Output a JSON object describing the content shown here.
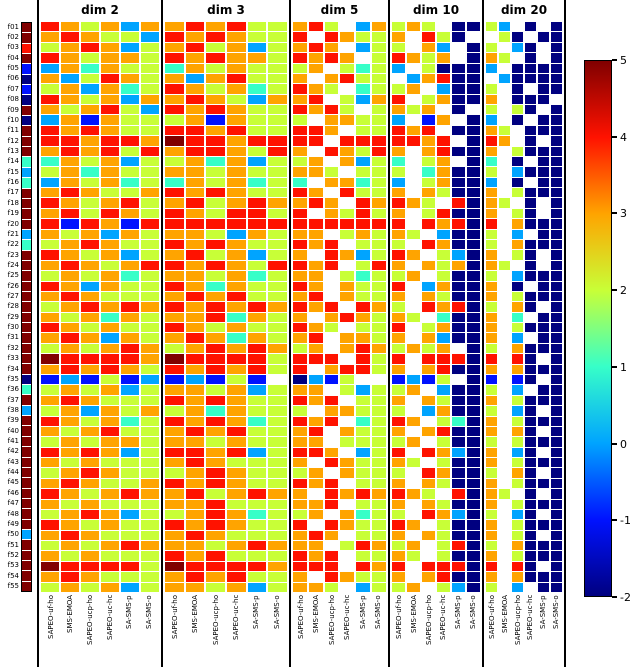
{
  "chart_data": {
    "type": "heatmap",
    "title": "",
    "colormap": "jet",
    "value_range": [
      -2,
      5
    ],
    "colorbar_ticks": [
      5,
      4,
      3,
      2,
      1,
      0,
      -1,
      -2
    ],
    "value_encoding": {
      ".": null,
      "a": -2,
      "b": -1,
      "c": 0,
      "d": 1,
      "e": 2,
      "f": 3,
      "g": 4,
      "h": 5
    },
    "rows": [
      "f01",
      "f02",
      "f03",
      "f04",
      "f05",
      "f06",
      "f07",
      "f08",
      "f09",
      "f10",
      "f11",
      "f12",
      "f13",
      "f14",
      "f15",
      "f16",
      "f17",
      "f18",
      "f19",
      "f20",
      "f21",
      "f22",
      "f23",
      "f24",
      "f25",
      "f26",
      "f27",
      "f28",
      "f29",
      "f30",
      "f31",
      "f32",
      "f33",
      "f34",
      "f35",
      "f36",
      "f37",
      "f38",
      "f39",
      "f40",
      "f41",
      "f42",
      "f43",
      "f44",
      "f45",
      "f46",
      "f47",
      "f48",
      "f49",
      "f50",
      "f51",
      "f52",
      "f53",
      "f54",
      "f55"
    ],
    "columns": [
      "SAPEO-uf-ho",
      "SMS-EMOA",
      "SAPEO-ucp-ho",
      "SAPEO-uc-hc",
      "SA-SMS-p",
      "SA-SMS-o"
    ],
    "reference_column": "hhghbabahahhhdcdhhhhcdhhhhhhhhhhhhadhchhhhhhhhhhhchhhhh",
    "panels": [
      {
        "title": "dim 2",
        "values": [
          "gfefcf",
          "fgfeec",
          "efgfce",
          "gfeffe",
          "cfdfee",
          "fcegfe",
          "efcfde",
          "gfefcf",
          "fefgec",
          "cfbfee",
          "gfgfee",
          "ggfggf",
          "fgfgeg",
          "dfefce",
          "efdfee",
          "cfefde",
          "fgfeef",
          "gfefge",
          "fgegfe",
          "gbgfbg",
          "fefcfe",
          "efgfee",
          "gfefce",
          "fgfefg",
          "efefde",
          "gfcfee",
          "fgfeee",
          "efgfgf",
          "fefdfe",
          "gfefee",
          "fgfcfe",
          "efefgf",
          "hggggf",
          "fgfgfe",
          "bcbebc",
          "efefce",
          "fgfeee",
          "efcfef",
          "gfefde",
          "fefgee",
          "efeffe",
          "gfgfce",
          "fefeee",
          "efgfee",
          "fgfeef",
          "gfefgf",
          "fefeee",
          "efgfce",
          "gfefee",
          "fgfeee",
          "efefgf",
          "fefeee",
          "hgggge",
          "fgfeee",
          "efefce"
        ]
      },
      {
        "title": "dim 3",
        "values": [
          "fgfgee",
          "gfgfee",
          "fgefce",
          "gfgffe",
          "dfefee",
          "fcfgee",
          "gfefde",
          "fgfecf",
          "gfgfee",
          "efbfee",
          "ggfgee",
          "hggfgg",
          "fggfeg",
          "efdfce",
          "ffefee",
          "dfefde",
          "gfgfee",
          "fgefgf",
          "gfegge",
          "gggggg",
          "ffecfe",
          "gfgfee",
          "fgefce",
          "gfgfeg",
          "ffefde",
          "gfdfee",
          "fgfgee",
          "gfgfgf",
          "ffgdfe",
          "gfefee",
          "fgfdfe",
          "efgfgf",
          "hgggge",
          "gfgfge",
          "bcbeb.",
          "ffefce",
          "gfgfee",
          "efdfee",
          "gfgfde",
          "fgfgee",
          "ffefee",
          "ggfgce",
          "fgfeee",
          "efgfee",
          "gfgfee",
          "fgefgf",
          "ffgeee",
          "efgfde",
          "gfgfee",
          "fgfeee",
          "ffefgf",
          "gfgeee",
          "hggggf",
          "fgfgee",
          "ffefce"
        ]
      },
      {
        "title": "dim 5",
        "values": [
          "fge.cf",
          "g.gfee",
          "fgf.ce",
          "gfgf.e",
          "ef.ede",
          "f.fgee",
          "gfe.de",
          "fg.ecf",
          "gfge.e",
          "e.ffee",
          "ggf.ee",
          "gg.ggg",
          "f.gfeg",
          "ef.fce",
          "ffe.ee",
          "d.ffde",
          "gf.gee",
          "fgf.gf",
          "g.fege",
          "gggggg",
          "ff.efe",
          "gfg.ee",
          "f.gfce",
          "gfg.eg",
          "ff.ede",
          "gf.fee",
          "fg.fee",
          "gfg.gf",
          "f.fgfe",
          "gfe.ee",
          "fg.ffe",
          "ef.fgf",
          "ggg.ge",
          "g.fgge",
          "acbe..",
          "ff.ece",
          "gfg.ee",
          "e.ffee",
          "gfg.de",
          "fg.fee",
          "ff.eee",
          "ggf.ce",
          "f.gfee",
          "ef.fee",
          "gfg.ee",
          "f.gfgf",
          "ffg.ee",
          "ef.fde",
          "g.gfee",
          "fgf.ee",
          "ff.egf",
          "gfg.ee",
          "ggg.gf",
          "f.gfee",
          "ffe.ce"
        ]
      },
      {
        "title": "dim 10",
        "values": [
          "efe.aa",
          "f.gea.",
          "e.fc.a",
          "gfef.a",
          "c.eaaa",
          ".cfgaa",
          "ef.caa",
          "g.efaa",
          "fef.a.",
          "c.bf.a",
          "gfg.aa",
          "ggfg.a",
          "f.fgaa",
          "d.ef.a",
          "e.dfaa",
          "c.efaa",
          "f.feaa",
          "gfe.ga",
          "f.egaa",
          "g.gfga",
          "fe.caa",
          "e.gfaa",
          "gf.eca",
          "f.fefa",
          "ef.eaa",
          "g.cfaa",
          "f.feaa",
          "e.gfga",
          "fe.daa",
          "g.efaa",
          "f.fcaa",
          "efef.a",
          "g.ggga",
          "f.fgaa",
          "bcbe.a",
          "ef.caa",
          "f.feaa",
          "e.cfaa",
          "gf.eda",
          "f.fgaa",
          "ef.eaa",
          "g.gfca",
          "fe.eaa",
          "e.gfaa",
          "f.feaa",
          "gfe.ga",
          "f.feaa",
          "e.gfca",
          "gf.eaa",
          "f.feaa",
          "ef.ega",
          "fe.eaa",
          "g.ggga",
          "f.fgaa",
          "ef.eca"
        ]
      },
      {
        "title": "dim 20",
        "values": [
          "ec.a.a",
          ".ea.aa",
          "e.ca.a",
          "fe.a.a",
          "c.aaaa",
          ".caaaa",
          "e.a.aa",
          "f.aaa.",
          "e.ea.a",
          "c.a.aa",
          "fe.aaa",
          "gf.a.a",
          "f.eaaa",
          "d.a.aa",
          "e.caaa",
          "c.a.aa",
          "f.eaaa",
          "fe.a.a",
          "f.ea.a",
          "g.faaa",
          "e.c.aa",
          "e.faaa",
          "f.ea.a",
          "fe.a.a",
          "e.caaa",
          "f.a.aa",
          "f.eaaa",
          "e.fa.a",
          "f.d.aa",
          "f.eaaa",
          "f.c.aa",
          "e.faaa",
          "g.ga.a",
          "f.faaa",
          "b.ba.a",
          "e.c.aa",
          "f.eaaa",
          "e.ca.a",
          "f.eaaa",
          "f.fa.a",
          "e.eaaa",
          "f.ca.a",
          "f.eaaa",
          "e.fa.a",
          "f.eaaa",
          "fe.a.a",
          "f.eaaa",
          "e.ca.a",
          "f.eaaa",
          "f.ea.a",
          "e.faaa",
          "f.eaaa",
          "g.ga.a",
          "f.faaa",
          "e.c.aa"
        ]
      }
    ]
  }
}
